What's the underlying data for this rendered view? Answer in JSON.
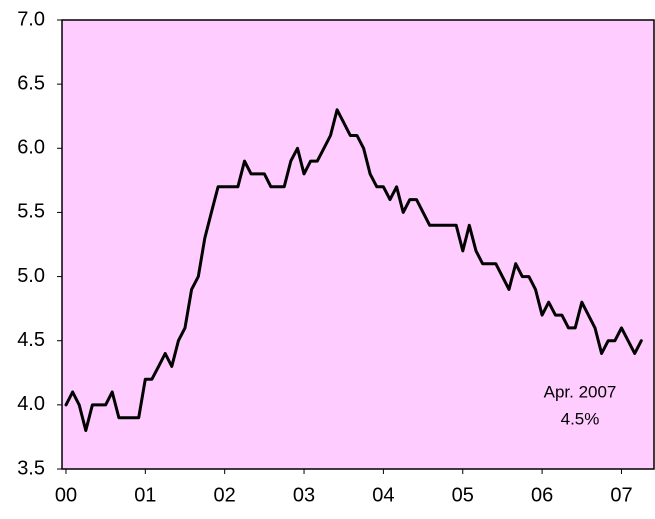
{
  "chart_data": {
    "type": "line",
    "annotations": [
      "Apr. 2007",
      "4.5%"
    ],
    "x": [
      2000,
      2000.083,
      2000.167,
      2000.25,
      2000.333,
      2000.417,
      2000.5,
      2000.583,
      2000.667,
      2000.75,
      2000.833,
      2000.917,
      2001,
      2001.083,
      2001.167,
      2001.25,
      2001.333,
      2001.417,
      2001.5,
      2001.583,
      2001.667,
      2001.75,
      2001.833,
      2001.917,
      2002,
      2002.083,
      2002.167,
      2002.25,
      2002.333,
      2002.417,
      2002.5,
      2002.583,
      2002.667,
      2002.75,
      2002.833,
      2002.917,
      2003,
      2003.083,
      2003.167,
      2003.25,
      2003.333,
      2003.417,
      2003.5,
      2003.583,
      2003.667,
      2003.75,
      2003.833,
      2003.917,
      2004,
      2004.083,
      2004.167,
      2004.25,
      2004.333,
      2004.417,
      2004.5,
      2004.583,
      2004.667,
      2004.75,
      2004.833,
      2004.917,
      2005,
      2005.083,
      2005.167,
      2005.25,
      2005.333,
      2005.417,
      2005.5,
      2005.583,
      2005.667,
      2005.75,
      2005.833,
      2005.917,
      2006,
      2006.083,
      2006.167,
      2006.25,
      2006.333,
      2006.417,
      2006.5,
      2006.583,
      2006.667,
      2006.75,
      2006.833,
      2006.917,
      2007,
      2007.083,
      2007.167,
      2007.25
    ],
    "series": [
      {
        "color": "#000000",
        "values": [
          4.0,
          4.1,
          4.0,
          3.8,
          4.0,
          4.0,
          4.0,
          4.1,
          3.9,
          3.9,
          3.9,
          3.9,
          4.2,
          4.2,
          4.3,
          4.4,
          4.3,
          4.5,
          4.6,
          4.9,
          5.0,
          5.3,
          5.5,
          5.7,
          5.7,
          5.7,
          5.7,
          5.9,
          5.8,
          5.8,
          5.8,
          5.7,
          5.7,
          5.7,
          5.9,
          6.0,
          5.8,
          5.9,
          5.9,
          6.0,
          6.1,
          6.3,
          6.2,
          6.1,
          6.1,
          6.0,
          5.8,
          5.7,
          5.7,
          5.6,
          5.7,
          5.5,
          5.6,
          5.6,
          5.5,
          5.4,
          5.4,
          5.4,
          5.4,
          5.4,
          5.2,
          5.4,
          5.2,
          5.1,
          5.1,
          5.1,
          5.0,
          4.9,
          5.1,
          5.0,
          5.0,
          4.9,
          4.7,
          4.8,
          4.7,
          4.7,
          4.6,
          4.6,
          4.8,
          4.7,
          4.6,
          4.4,
          4.5,
          4.5,
          4.6,
          4.5,
          4.4,
          4.5
        ]
      }
    ],
    "xlim": [
      1999.95,
      2007.41
    ],
    "xticks": [
      {
        "value": 2000,
        "label": "00"
      },
      {
        "value": 2001,
        "label": "01"
      },
      {
        "value": 2002,
        "label": "02"
      },
      {
        "value": 2003,
        "label": "03"
      },
      {
        "value": 2004,
        "label": "04"
      },
      {
        "value": 2005,
        "label": "05"
      },
      {
        "value": 2006,
        "label": "06"
      },
      {
        "value": 2007,
        "label": "07"
      }
    ],
    "ylim": [
      3.5,
      7.0
    ],
    "yticks": [
      {
        "value": 3.5,
        "label": "3.5"
      },
      {
        "value": 4.0,
        "label": "4.0"
      },
      {
        "value": 4.5,
        "label": "4.5"
      },
      {
        "value": 5.0,
        "label": "5.0"
      },
      {
        "value": 5.5,
        "label": "5.5"
      },
      {
        "value": 6.0,
        "label": "6.0"
      },
      {
        "value": 6.5,
        "label": "6.5"
      },
      {
        "value": 7.0,
        "label": "7.0"
      }
    ],
    "background": "#ffccff"
  }
}
